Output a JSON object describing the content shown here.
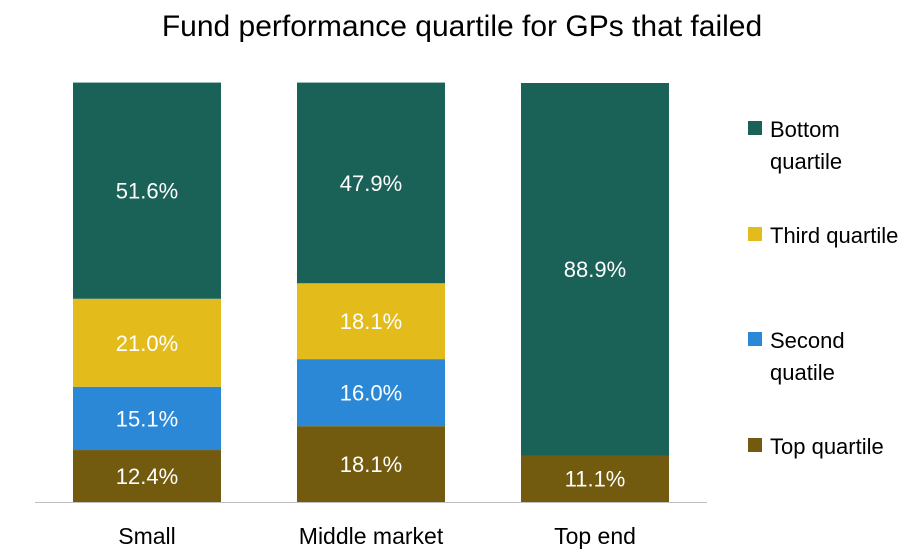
{
  "chart_data": {
    "type": "bar",
    "stacked": true,
    "title": "Fund performance quartile for GPs that failed",
    "categories": [
      "Small",
      "Middle market",
      "Top end"
    ],
    "series": [
      {
        "name": "Top quartile",
        "color": "#725a0e",
        "values": [
          12.4,
          18.1,
          11.1
        ]
      },
      {
        "name": "Second quatile",
        "color": "#2a88d6",
        "values": [
          15.1,
          16.0,
          0
        ]
      },
      {
        "name": "Third quartile",
        "color": "#e3bb1b",
        "values": [
          21.0,
          18.1,
          0
        ]
      },
      {
        "name": "Bottom quartile",
        "color": "#1a6157",
        "values": [
          51.6,
          47.9,
          88.9
        ]
      }
    ],
    "legend_order": [
      "Bottom quartile",
      "Third quartile",
      "Second quatile",
      "Top quartile"
    ],
    "legend_position": "right",
    "value_label_format": "{v}%",
    "ylim": [
      0,
      100
    ],
    "grid": false
  }
}
